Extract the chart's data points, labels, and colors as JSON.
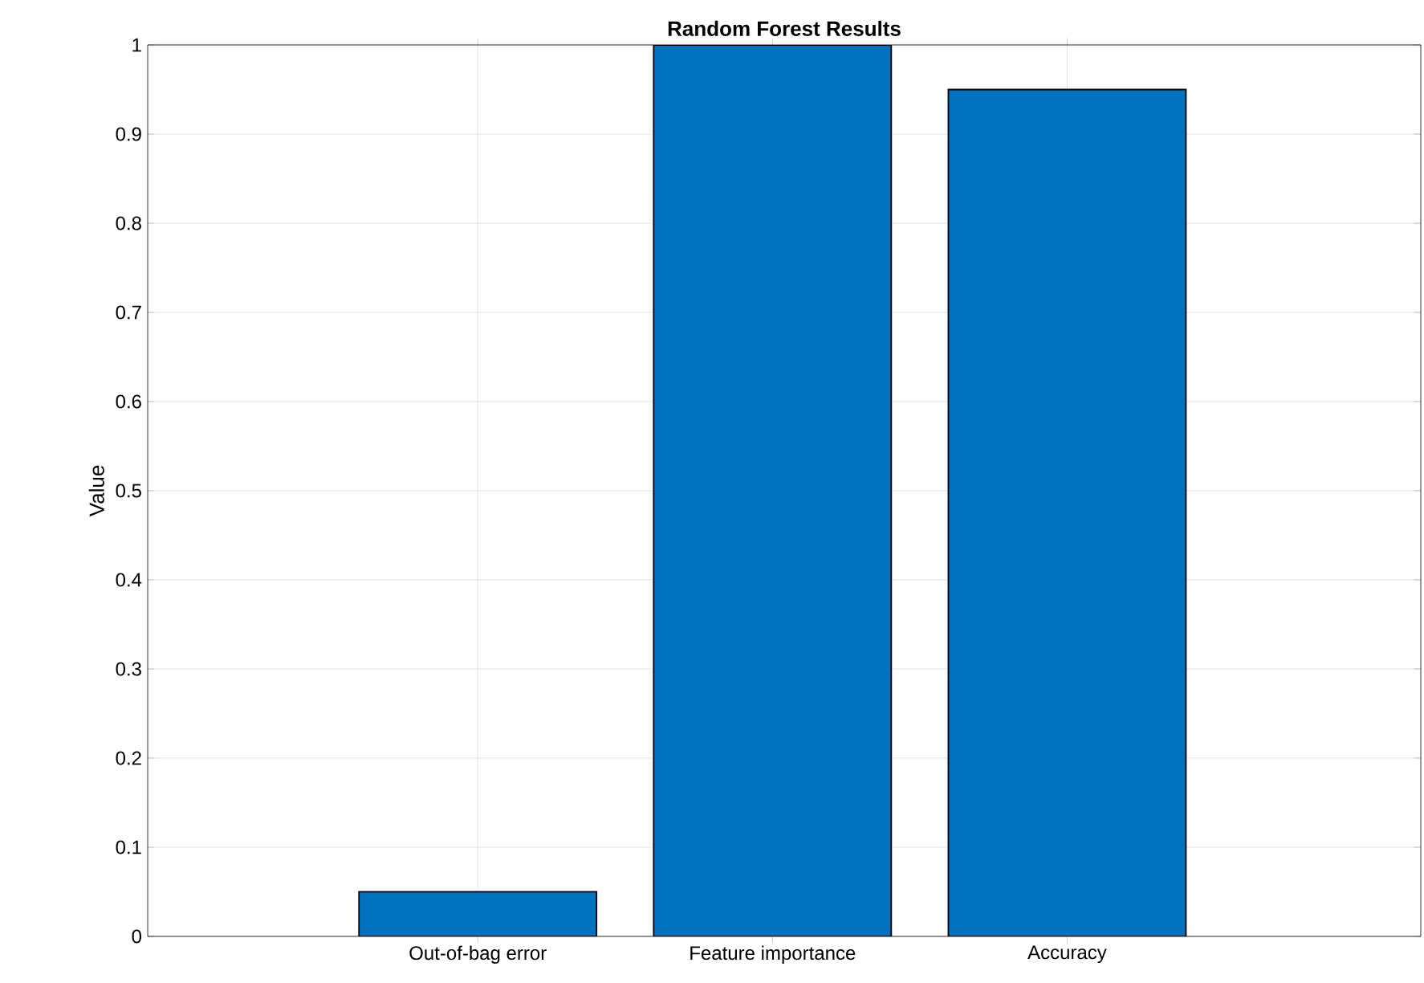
{
  "chart_data": {
    "type": "bar",
    "title": "Random Forest Results",
    "ylabel": "Value",
    "categories": [
      "Out-of-bag error",
      "Feature importance",
      "Accuracy"
    ],
    "values": [
      0.05,
      1,
      0.95
    ],
    "color": "#0072bd",
    "ylim": [
      0,
      1
    ],
    "yticks": [
      0,
      0.1,
      0.2,
      0.3,
      0.4,
      0.5,
      0.6,
      0.7,
      0.8,
      0.9,
      1
    ],
    "grid": true
  }
}
